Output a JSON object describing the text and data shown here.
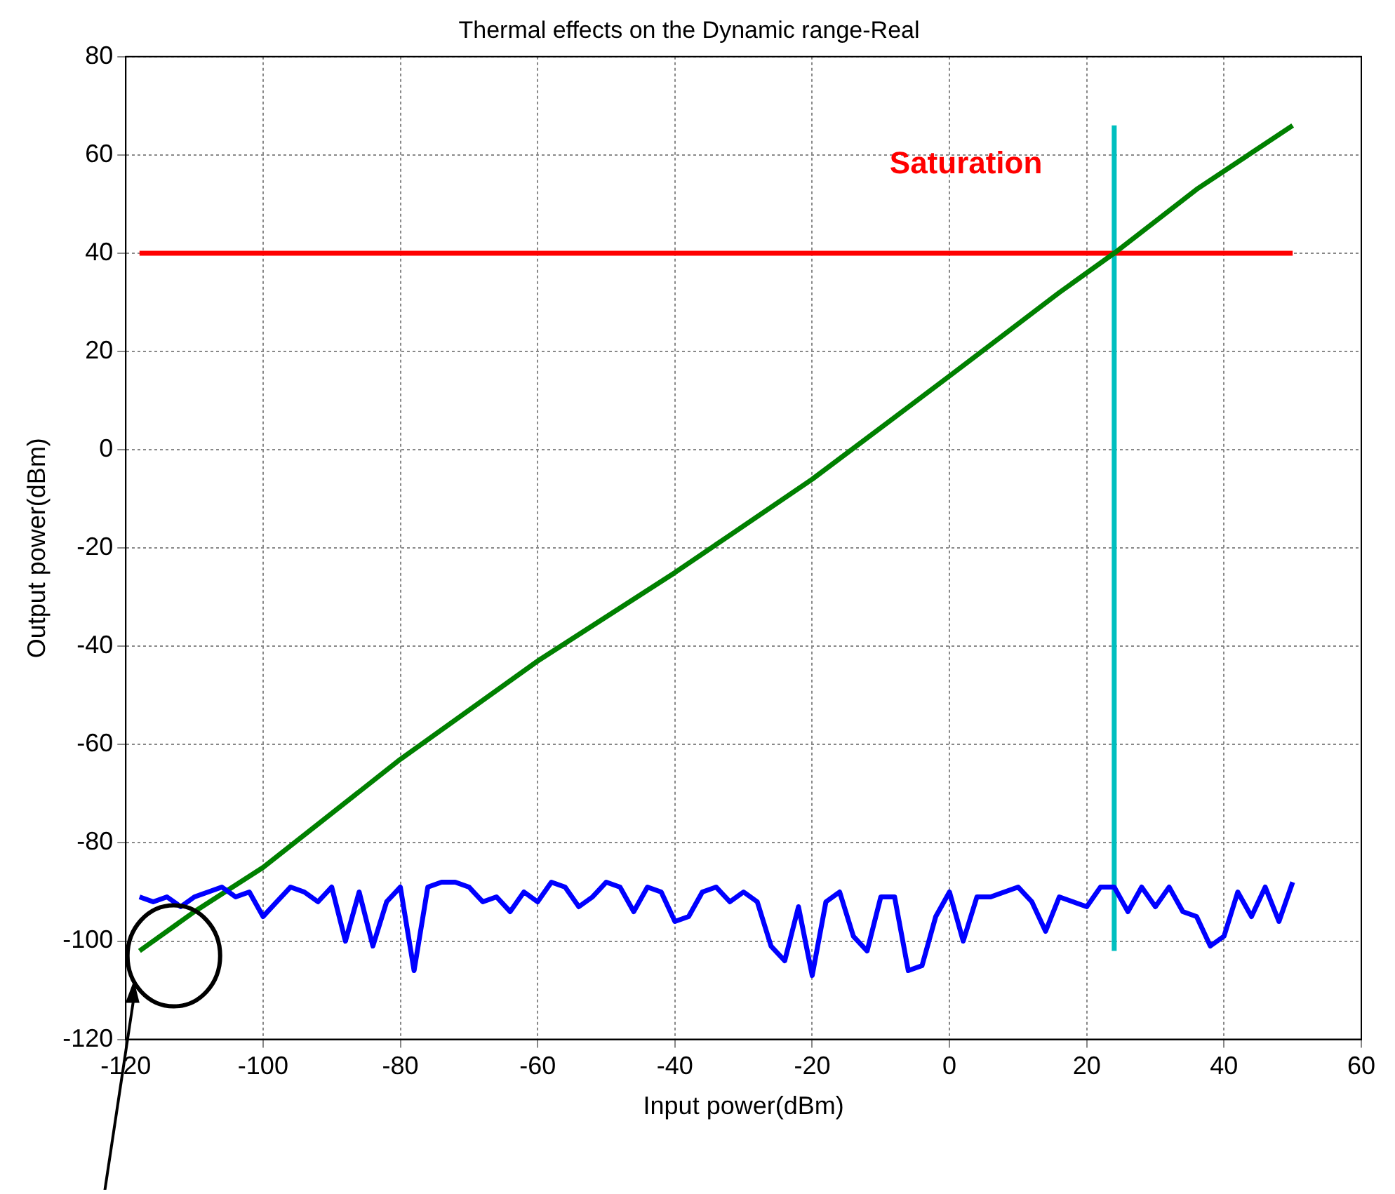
{
  "chart_data": {
    "type": "line",
    "title": "Thermal effects on the Dynamic range-Real",
    "xlabel": "Input power(dBm)",
    "ylabel": "Output power(dBm)",
    "x": [
      -118,
      -116,
      -114,
      -112,
      -110,
      -108,
      -106,
      -104,
      -102,
      -100,
      -98,
      -96,
      -94,
      -92,
      -90,
      -88,
      -86,
      -84,
      -82,
      -80,
      -78,
      -76,
      -74,
      -72,
      -70,
      -68,
      -66,
      -64,
      -62,
      -60,
      -58,
      -56,
      -54,
      -52,
      -50,
      -48,
      -46,
      -44,
      -42,
      -40,
      -38,
      -36,
      -34,
      -32,
      -30,
      -28,
      -26,
      -24,
      -22,
      -20,
      -18,
      -16,
      -14,
      -12,
      -10,
      -8,
      -6,
      -4,
      -2,
      0,
      2,
      4,
      6,
      8,
      10,
      12,
      14,
      16,
      18,
      20,
      22,
      24,
      26,
      28,
      30,
      32,
      34,
      36,
      38,
      40,
      42,
      44,
      46,
      48,
      50
    ],
    "series": [
      {
        "color": "#0000ff",
        "values": [
          -91,
          -92,
          -91,
          -93,
          -91,
          -90,
          -89,
          -91,
          -90,
          -95,
          -92,
          -89,
          -90,
          -92,
          -89,
          -100,
          -90,
          -101,
          -92,
          -89,
          -106,
          -89,
          -88,
          -88,
          -89,
          -92,
          -91,
          -94,
          -90,
          -92,
          -88,
          -89,
          -93,
          -91,
          -88,
          -89,
          -94,
          -89,
          -90,
          -96,
          -95,
          -90,
          -89,
          -92,
          -90,
          -92,
          -101,
          -104,
          -93,
          -107,
          -92,
          -90,
          -99,
          -102,
          -91,
          -91,
          -106,
          -105,
          -95,
          -90,
          -100,
          -91,
          -91,
          -90,
          -89,
          -92,
          -98,
          -91,
          -92,
          -93,
          -89,
          -89,
          -94,
          -89,
          -93,
          -89,
          -94,
          -95,
          -101,
          -99,
          -90,
          -95,
          -89,
          -96,
          -88
        ]
      },
      {
        "color": "#008000",
        "x": [
          -118,
          -110,
          -100,
          -80,
          -60,
          -40,
          -20,
          0,
          16,
          24,
          36,
          50
        ],
        "values": [
          -102,
          -94,
          -85,
          -63,
          -43,
          -25,
          -6,
          15,
          32,
          40,
          53,
          66
        ]
      },
      {
        "color": "#ff0000",
        "x": [
          -118,
          50
        ],
        "values": [
          40,
          40
        ]
      },
      {
        "color": "#00bfbf",
        "x": [
          24,
          24
        ],
        "values": [
          -102,
          66
        ]
      }
    ],
    "annotations": [
      "Saturation"
    ],
    "xlim": [
      -120,
      60
    ],
    "xticks": [
      -120,
      -100,
      -80,
      -60,
      -40,
      -20,
      0,
      20,
      40,
      60
    ],
    "ylim": [
      -120,
      80
    ],
    "yticks": [
      -120,
      -100,
      -80,
      -60,
      -40,
      -20,
      0,
      20,
      40,
      60,
      80
    ],
    "grid": true,
    "legend": false,
    "marker": "none",
    "line_style": "solid"
  }
}
